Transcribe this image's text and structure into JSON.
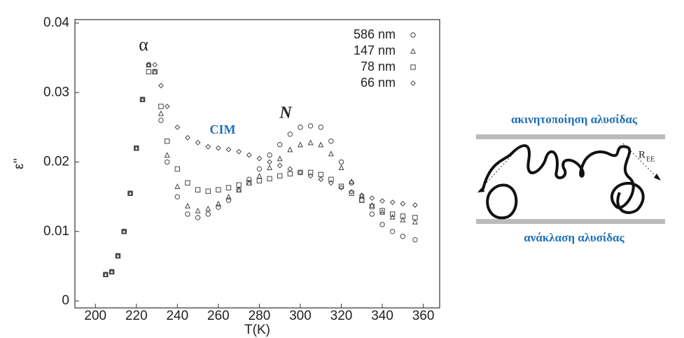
{
  "chart_data": {
    "type": "scatter",
    "x_label": "T(K)",
    "y_label": "ε''",
    "annotations": [
      "α",
      "N",
      "CIM"
    ],
    "x": [
      205,
      208,
      211,
      214,
      217,
      220,
      223,
      226,
      229,
      232,
      235,
      240,
      245,
      250,
      255,
      260,
      265,
      270,
      275,
      280,
      285,
      290,
      295,
      300,
      305,
      310,
      315,
      320,
      325,
      330,
      335,
      340,
      345,
      350,
      356
    ],
    "series": [
      {
        "name": "586 nm",
        "marker": "circle",
        "color": "#444444",
        "values": [
          0.0038,
          0.0042,
          0.0065,
          0.01,
          0.0155,
          0.022,
          0.029,
          0.034,
          0.033,
          0.026,
          0.02,
          0.015,
          0.0125,
          0.012,
          0.0125,
          0.0135,
          0.0145,
          0.016,
          0.0175,
          0.019,
          0.021,
          0.0225,
          0.024,
          0.025,
          0.0252,
          0.025,
          0.023,
          0.02,
          0.017,
          0.0145,
          0.0125,
          0.011,
          0.01,
          0.0093,
          0.0088
        ]
      },
      {
        "name": "147 nm",
        "marker": "triangle",
        "color": "#444444",
        "values": [
          0.0038,
          0.0042,
          0.0065,
          0.01,
          0.0155,
          0.022,
          0.029,
          0.034,
          0.033,
          0.027,
          0.021,
          0.0165,
          0.0137,
          0.013,
          0.0133,
          0.014,
          0.015,
          0.016,
          0.017,
          0.018,
          0.0192,
          0.0205,
          0.0218,
          0.0225,
          0.0228,
          0.0225,
          0.0212,
          0.0192,
          0.0172,
          0.0152,
          0.0138,
          0.0128,
          0.0121,
          0.0117,
          0.0114
        ]
      },
      {
        "name": "78 nm",
        "marker": "square",
        "color": "#444444",
        "values": [
          0.0038,
          0.0042,
          0.0065,
          0.01,
          0.0155,
          0.022,
          0.029,
          0.033,
          0.033,
          0.028,
          0.023,
          0.019,
          0.017,
          0.016,
          0.0158,
          0.016,
          0.0163,
          0.0167,
          0.017,
          0.0173,
          0.0176,
          0.018,
          0.0183,
          0.0185,
          0.0185,
          0.0182,
          0.0175,
          0.0165,
          0.0155,
          0.0145,
          0.0136,
          0.013,
          0.0125,
          0.0122,
          0.012
        ]
      },
      {
        "name": "66 nm",
        "marker": "diamond",
        "color": "#444444",
        "values": [
          0.0038,
          0.0042,
          0.0065,
          0.01,
          0.0155,
          0.022,
          0.029,
          0.034,
          0.034,
          0.031,
          0.028,
          0.025,
          0.0235,
          0.0228,
          0.0222,
          0.022,
          0.0218,
          0.0215,
          0.021,
          0.0205,
          0.02,
          0.0195,
          0.019,
          0.0185,
          0.018,
          0.0175,
          0.017,
          0.0163,
          0.0157,
          0.0152,
          0.0148,
          0.0144,
          0.0142,
          0.014,
          0.0138
        ]
      }
    ],
    "xlim": [
      190,
      368
    ],
    "ylim": [
      -0.001,
      0.0405
    ],
    "xticks": [
      200,
      220,
      240,
      260,
      280,
      300,
      320,
      340,
      360
    ],
    "yticks": [
      0,
      0.01,
      0.02,
      0.03,
      0.04
    ]
  },
  "diagram": {
    "top_label": "ακινητοποίηση αλυσίδας",
    "bottom_label": "ανάκλαση αλυσίδας",
    "ree": {
      "main": "R",
      "sub": "EE"
    }
  }
}
